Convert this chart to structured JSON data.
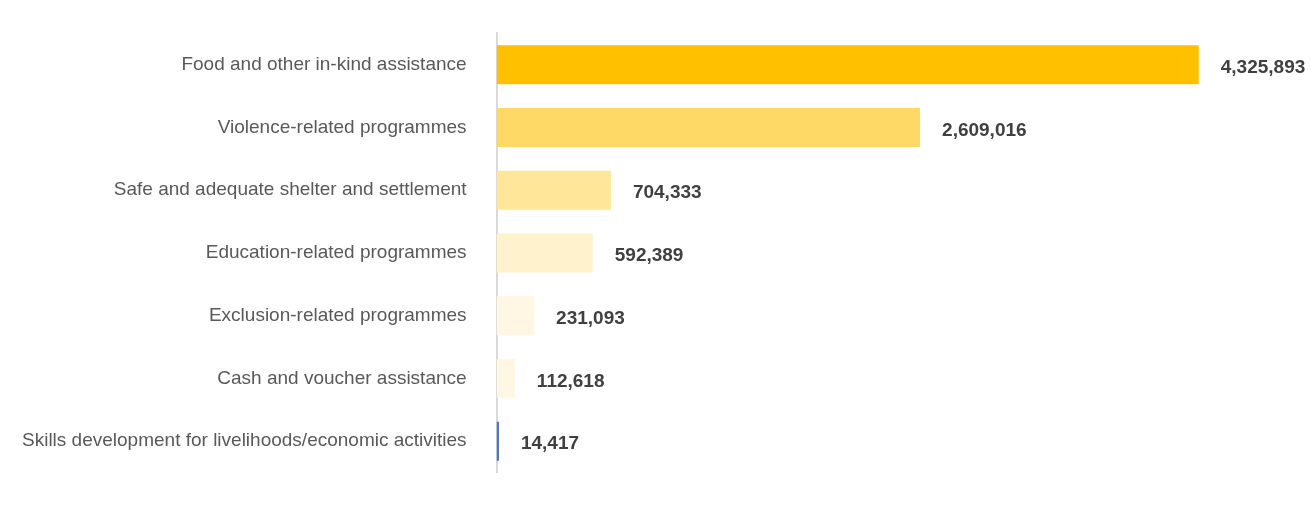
{
  "chart_data": {
    "type": "bar",
    "orientation": "horizontal",
    "categories": [
      "Food and other in-kind assistance",
      "Violence-related programmes",
      "Safe and adequate shelter and settlement",
      "Education-related programmes",
      "Exclusion-related programmes",
      "Cash and voucher assistance",
      "Skills development for livelihoods/economic activities"
    ],
    "values": [
      4325893,
      2609016,
      704333,
      592389,
      231093,
      112618,
      14417
    ],
    "colors": [
      "#ffc000",
      "#ffd966",
      "#ffe699",
      "#fff2cc",
      "#fff7e3",
      "#fff7e3",
      "#4472c4"
    ],
    "value_labels": [
      "4,325,893",
      "2,609,016",
      "704,333",
      "592,389",
      "231,093",
      "112,618",
      "14,417"
    ],
    "legend": false,
    "tick_labels": "y"
  }
}
